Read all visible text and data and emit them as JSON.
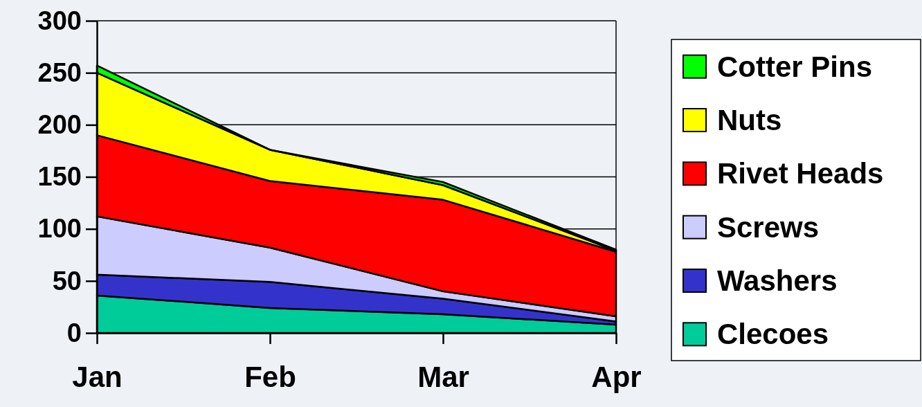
{
  "chart_data": {
    "type": "area",
    "stacked": true,
    "categories": [
      "Jan",
      "Feb",
      "Mar",
      "Apr"
    ],
    "ylim": [
      0,
      300
    ],
    "yticks": [
      0,
      50,
      100,
      150,
      200,
      250,
      300
    ],
    "grid": "y",
    "legend": "right",
    "series": [
      {
        "name": "Clecoes",
        "color": "#00cc99",
        "values": [
          36,
          24,
          18,
          8
        ]
      },
      {
        "name": "Washers",
        "color": "#3333cc",
        "values": [
          20,
          25,
          15,
          3
        ]
      },
      {
        "name": "Screws",
        "color": "#ccccff",
        "values": [
          56,
          33,
          7,
          5
        ]
      },
      {
        "name": "Rivet Heads",
        "color": "#ff0000",
        "values": [
          78,
          64,
          88,
          62
        ]
      },
      {
        "name": "Nuts",
        "color": "#ffff00",
        "values": [
          60,
          30,
          14,
          1
        ]
      },
      {
        "name": "Cotter Pins",
        "color": "#00ff00",
        "values": [
          7,
          0,
          3,
          1
        ]
      }
    ]
  }
}
